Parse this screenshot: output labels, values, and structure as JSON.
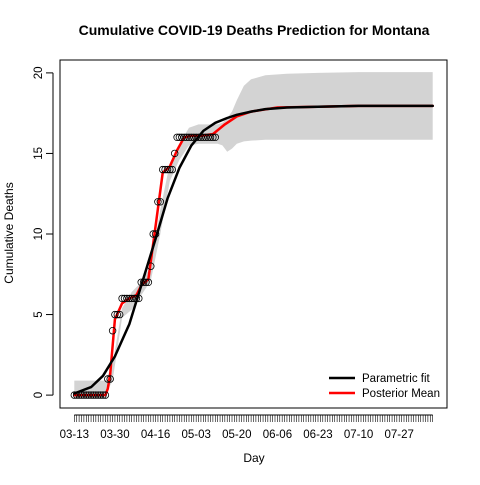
{
  "chart_data": {
    "type": "line",
    "title": "Cumulative COVID-19 Deaths Prediction for Montana",
    "xlabel": "Day",
    "ylabel": "Cumulative Deaths",
    "x_start": "2020-03-13",
    "x_end": "2020-08-10",
    "xticks": [
      "03-13",
      "03-30",
      "04-16",
      "05-03",
      "05-20",
      "06-06",
      "06-23",
      "07-10",
      "07-27"
    ],
    "yticks": [
      0,
      5,
      10,
      15,
      20
    ],
    "ylim": [
      0,
      20
    ],
    "grid": false,
    "legend_position": "bottom-right",
    "series": [
      {
        "name": "Parametric fit",
        "color": "#000000",
        "x": [
          "2020-03-13",
          "2020-03-20",
          "2020-03-25",
          "2020-03-30",
          "2020-04-05",
          "2020-04-10",
          "2020-04-16",
          "2020-04-21",
          "2020-04-26",
          "2020-05-01",
          "2020-05-06",
          "2020-05-11",
          "2020-05-16",
          "2020-05-20",
          "2020-05-26",
          "2020-06-01",
          "2020-06-10",
          "2020-06-23",
          "2020-07-10",
          "2020-08-10"
        ],
        "y": [
          0.1,
          0.5,
          1.2,
          2.4,
          4.4,
          6.8,
          9.7,
          12.2,
          14.1,
          15.5,
          16.4,
          16.9,
          17.2,
          17.4,
          17.6,
          17.75,
          17.85,
          17.9,
          17.95,
          17.95
        ]
      },
      {
        "name": "Posterior Mean",
        "color": "#ff0000",
        "x": [
          "2020-03-13",
          "2020-03-26",
          "2020-03-27",
          "2020-03-28",
          "2020-03-30",
          "2020-04-02",
          "2020-04-05",
          "2020-04-08",
          "2020-04-10",
          "2020-04-13",
          "2020-04-16",
          "2020-04-19",
          "2020-04-22",
          "2020-04-25",
          "2020-04-28",
          "2020-05-01",
          "2020-05-05",
          "2020-05-10",
          "2020-05-15",
          "2020-05-20",
          "2020-05-26",
          "2020-06-06",
          "2020-06-23",
          "2020-07-10",
          "2020-08-10"
        ],
        "y": [
          0,
          0,
          0.4,
          1.3,
          4.7,
          5.7,
          6.0,
          6.2,
          6.8,
          7.2,
          10.5,
          13.8,
          14.2,
          15.2,
          16.0,
          16.1,
          16.1,
          16.2,
          16.8,
          17.3,
          17.6,
          17.85,
          17.9,
          17.95,
          17.95
        ]
      }
    ],
    "band": {
      "color": "#d3d3d3",
      "x": [
        "2020-03-13",
        "2020-03-26",
        "2020-03-29",
        "2020-04-02",
        "2020-04-06",
        "2020-04-10",
        "2020-04-14",
        "2020-04-18",
        "2020-04-22",
        "2020-04-26",
        "2020-04-30",
        "2020-05-04",
        "2020-05-08",
        "2020-05-12",
        "2020-05-14",
        "2020-05-16",
        "2020-05-18",
        "2020-05-20",
        "2020-05-23",
        "2020-05-26",
        "2020-06-01",
        "2020-06-10",
        "2020-06-23",
        "2020-07-10",
        "2020-08-10"
      ],
      "upper": [
        0.9,
        0.9,
        1.9,
        5.4,
        6.4,
        7.0,
        8.0,
        11.5,
        14.4,
        15.6,
        16.6,
        16.8,
        16.8,
        16.8,
        16.9,
        17.2,
        17.6,
        18.3,
        19.2,
        19.6,
        19.85,
        19.95,
        20.0,
        20.05,
        20.05
      ],
      "lower": [
        0,
        0,
        0.9,
        4.8,
        5.3,
        6.2,
        7.1,
        10.0,
        13.3,
        14.6,
        15.5,
        15.6,
        15.6,
        15.6,
        15.5,
        15.1,
        15.3,
        15.6,
        15.75,
        15.8,
        15.85,
        15.85,
        15.85,
        15.85,
        15.85
      ]
    },
    "observed": {
      "marker": "open-circle",
      "x": [
        "2020-03-13",
        "2020-03-14",
        "2020-03-15",
        "2020-03-16",
        "2020-03-17",
        "2020-03-18",
        "2020-03-19",
        "2020-03-20",
        "2020-03-21",
        "2020-03-22",
        "2020-03-23",
        "2020-03-24",
        "2020-03-25",
        "2020-03-26",
        "2020-03-27",
        "2020-03-28",
        "2020-03-29",
        "2020-03-30",
        "2020-03-31",
        "2020-04-01",
        "2020-04-02",
        "2020-04-03",
        "2020-04-04",
        "2020-04-05",
        "2020-04-06",
        "2020-04-07",
        "2020-04-08",
        "2020-04-09",
        "2020-04-10",
        "2020-04-11",
        "2020-04-12",
        "2020-04-13",
        "2020-04-14",
        "2020-04-15",
        "2020-04-16",
        "2020-04-17",
        "2020-04-18",
        "2020-04-19",
        "2020-04-20",
        "2020-04-21",
        "2020-04-22",
        "2020-04-23",
        "2020-04-24",
        "2020-04-25",
        "2020-04-26",
        "2020-04-27",
        "2020-04-28",
        "2020-04-29",
        "2020-04-30",
        "2020-05-01",
        "2020-05-02",
        "2020-05-03",
        "2020-05-04",
        "2020-05-05",
        "2020-05-06",
        "2020-05-07",
        "2020-05-08",
        "2020-05-09",
        "2020-05-10",
        "2020-05-11"
      ],
      "y": [
        0,
        0,
        0,
        0,
        0,
        0,
        0,
        0,
        0,
        0,
        0,
        0,
        0,
        0,
        1,
        1,
        4,
        5,
        5,
        5,
        6,
        6,
        6,
        6,
        6,
        6,
        6,
        6,
        7,
        7,
        7,
        7,
        8,
        10,
        10,
        12,
        12,
        14,
        14,
        14,
        14,
        14,
        15,
        16,
        16,
        16,
        16,
        16,
        16,
        16,
        16,
        16,
        16,
        16,
        16,
        16,
        16,
        16,
        16,
        16
      ]
    }
  }
}
